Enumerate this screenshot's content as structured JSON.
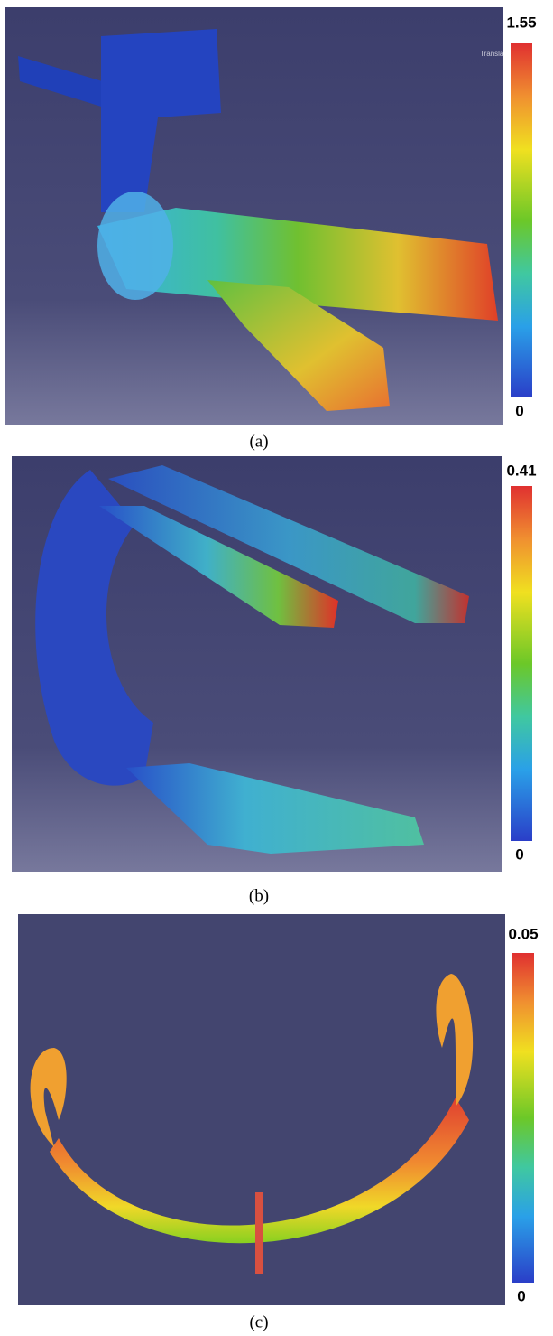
{
  "panels": [
    {
      "max_label": "1.55",
      "min_label": "0",
      "caption": "(a)",
      "overlay_text": "Transla"
    },
    {
      "max_label": "0.41",
      "min_label": "0",
      "caption": "(b)"
    },
    {
      "max_label": "0.05",
      "min_label": "0",
      "caption": "(c)"
    }
  ]
}
